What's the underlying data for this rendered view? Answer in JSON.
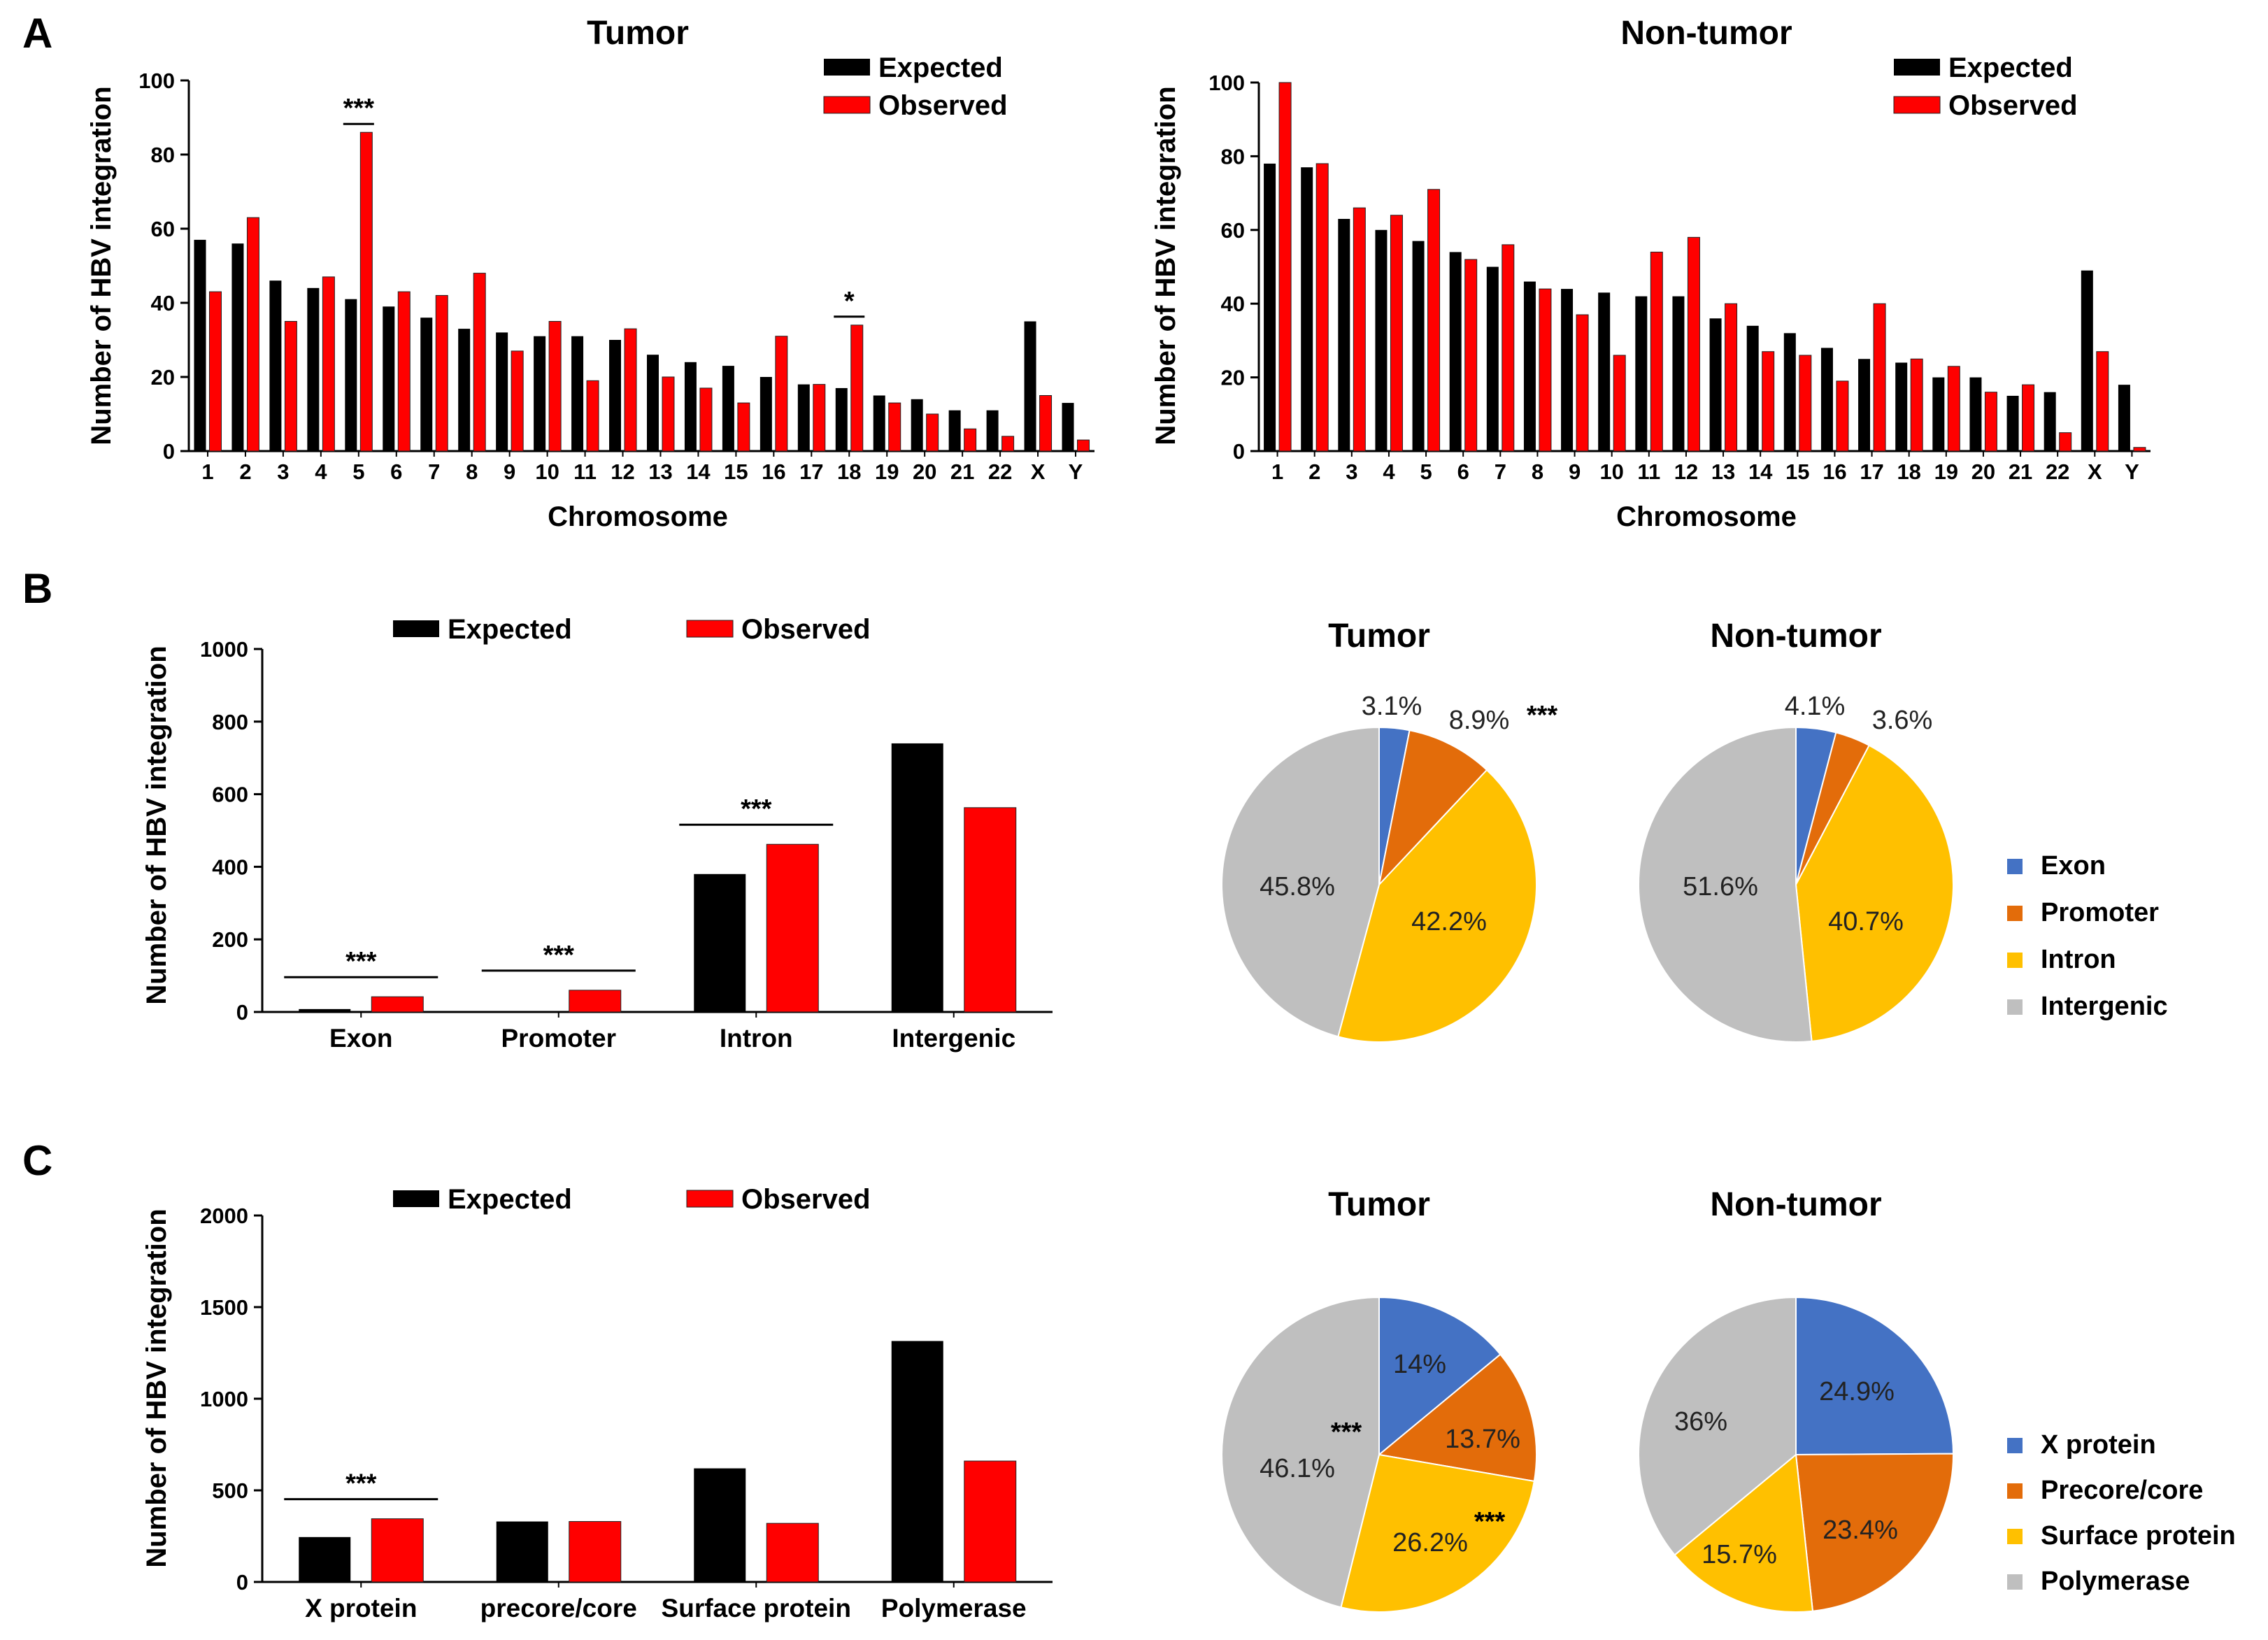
{
  "panels": {
    "A": "A",
    "B": "B",
    "C": "C"
  },
  "colors": {
    "expected": "#000000",
    "observed": "#ff0000",
    "exon": "#4472c4",
    "promoter": "#e36c0a",
    "intron": "#ffc000",
    "intergenic": "#bfbfbf"
  },
  "chart_data": [
    {
      "id": "A-tumor",
      "type": "bar",
      "title": "Tumor",
      "xlabel": "Chromosome",
      "ylabel": "Number of HBV integration",
      "ylim": [
        0,
        100
      ],
      "yticks": [
        0,
        20,
        40,
        60,
        80,
        100
      ],
      "categories": [
        "1",
        "2",
        "3",
        "4",
        "5",
        "6",
        "7",
        "8",
        "9",
        "10",
        "11",
        "12",
        "13",
        "14",
        "15",
        "16",
        "17",
        "18",
        "19",
        "20",
        "21",
        "22",
        "X",
        "Y"
      ],
      "series": [
        {
          "name": "Expected",
          "values": [
            57,
            56,
            46,
            44,
            41,
            39,
            36,
            33,
            32,
            31,
            31,
            30,
            26,
            24,
            23,
            20,
            18,
            17,
            15,
            14,
            11,
            11,
            35,
            13
          ]
        },
        {
          "name": "Observed",
          "values": [
            43,
            63,
            35,
            47,
            86,
            43,
            42,
            48,
            27,
            35,
            19,
            33,
            20,
            17,
            13,
            31,
            18,
            34,
            13,
            10,
            6,
            4,
            15,
            3
          ]
        }
      ],
      "significance": [
        {
          "category": "5",
          "label": "***"
        },
        {
          "category": "18",
          "label": "*"
        }
      ]
    },
    {
      "id": "A-nontumor",
      "type": "bar",
      "title": "Non-tumor",
      "xlabel": "Chromosome",
      "ylabel": "Number of HBV integration",
      "ylim": [
        0,
        100
      ],
      "yticks": [
        0,
        20,
        40,
        60,
        80,
        100
      ],
      "categories": [
        "1",
        "2",
        "3",
        "4",
        "5",
        "6",
        "7",
        "8",
        "9",
        "10",
        "11",
        "12",
        "13",
        "14",
        "15",
        "16",
        "17",
        "18",
        "19",
        "20",
        "21",
        "22",
        "X",
        "Y"
      ],
      "series": [
        {
          "name": "Expected",
          "values": [
            78,
            77,
            63,
            60,
            57,
            54,
            50,
            46,
            44,
            43,
            42,
            42,
            36,
            34,
            32,
            28,
            25,
            24,
            20,
            20,
            15,
            16,
            49,
            18
          ]
        },
        {
          "name": "Observed",
          "values": [
            100,
            78,
            66,
            64,
            71,
            52,
            56,
            44,
            37,
            26,
            54,
            58,
            40,
            27,
            26,
            19,
            40,
            25,
            23,
            16,
            18,
            5,
            27,
            1
          ]
        }
      ],
      "significance": []
    },
    {
      "id": "B-bar",
      "type": "bar",
      "title": "",
      "xlabel": "",
      "ylabel": "Number of HBV integration",
      "ylim": [
        0,
        1000
      ],
      "yticks": [
        0,
        200,
        400,
        600,
        800,
        1000
      ],
      "categories": [
        "Exon",
        "Promoter",
        "Intron",
        "Intergenic"
      ],
      "series": [
        {
          "name": "Expected",
          "values": [
            8,
            0,
            380,
            740
          ]
        },
        {
          "name": "Observed",
          "values": [
            42,
            60,
            462,
            563
          ]
        }
      ],
      "significance": [
        {
          "category": "Exon",
          "label": "***"
        },
        {
          "category": "Promoter",
          "label": "***"
        },
        {
          "category": "Intron",
          "label": "***"
        }
      ]
    },
    {
      "id": "C-bar",
      "type": "bar",
      "title": "",
      "xlabel": "",
      "ylabel": "Number of HBV integration",
      "ylim": [
        0,
        2000
      ],
      "yticks": [
        0,
        500,
        1000,
        1500,
        2000
      ],
      "categories": [
        "X protein",
        "precore/core",
        "Surface protein",
        "Polymerase"
      ],
      "series": [
        {
          "name": "Expected",
          "values": [
            245,
            330,
            620,
            1315
          ]
        },
        {
          "name": "Observed",
          "values": [
            345,
            330,
            320,
            660
          ]
        }
      ],
      "significance": [
        {
          "category": "X protein",
          "label": "***"
        }
      ]
    },
    {
      "id": "B-pie-tumor",
      "type": "pie",
      "title": "Tumor",
      "labels": [
        "Exon",
        "Promoter",
        "Intron",
        "Intergenic"
      ],
      "values": [
        3.1,
        8.9,
        42.2,
        45.8
      ],
      "value_labels": [
        "3.1%",
        "8.9%",
        "42.2%",
        "45.8%"
      ],
      "significance": [
        {
          "slice": "Promoter",
          "label": "***"
        }
      ]
    },
    {
      "id": "B-pie-nontumor",
      "type": "pie",
      "title": "Non-tumor",
      "labels": [
        "Exon",
        "Promoter",
        "Intron",
        "Intergenic"
      ],
      "values": [
        4.1,
        3.6,
        40.7,
        51.6
      ],
      "value_labels": [
        "4.1%",
        "3.6%",
        "40.7%",
        "51.6%"
      ],
      "significance": []
    },
    {
      "id": "C-pie-tumor",
      "type": "pie",
      "title": "Tumor",
      "labels": [
        "X protein",
        "Precore/core",
        "Surface protein",
        "Polymerase"
      ],
      "values": [
        14,
        13.7,
        26.2,
        46.1
      ],
      "value_labels": [
        "14%",
        "13.7%",
        "26.2%",
        "46.1%"
      ],
      "significance": [
        {
          "slice": "Surface protein",
          "label": "***"
        },
        {
          "slice": "Polymerase",
          "label": "***"
        }
      ]
    },
    {
      "id": "C-pie-nontumor",
      "type": "pie",
      "title": "Non-tumor",
      "labels": [
        "X protein",
        "Precore/core",
        "Surface protein",
        "Polymerase"
      ],
      "values": [
        24.9,
        23.4,
        15.7,
        36
      ],
      "value_labels": [
        "24.9%",
        "23.4%",
        "15.7%",
        "36%"
      ],
      "significance": []
    }
  ]
}
